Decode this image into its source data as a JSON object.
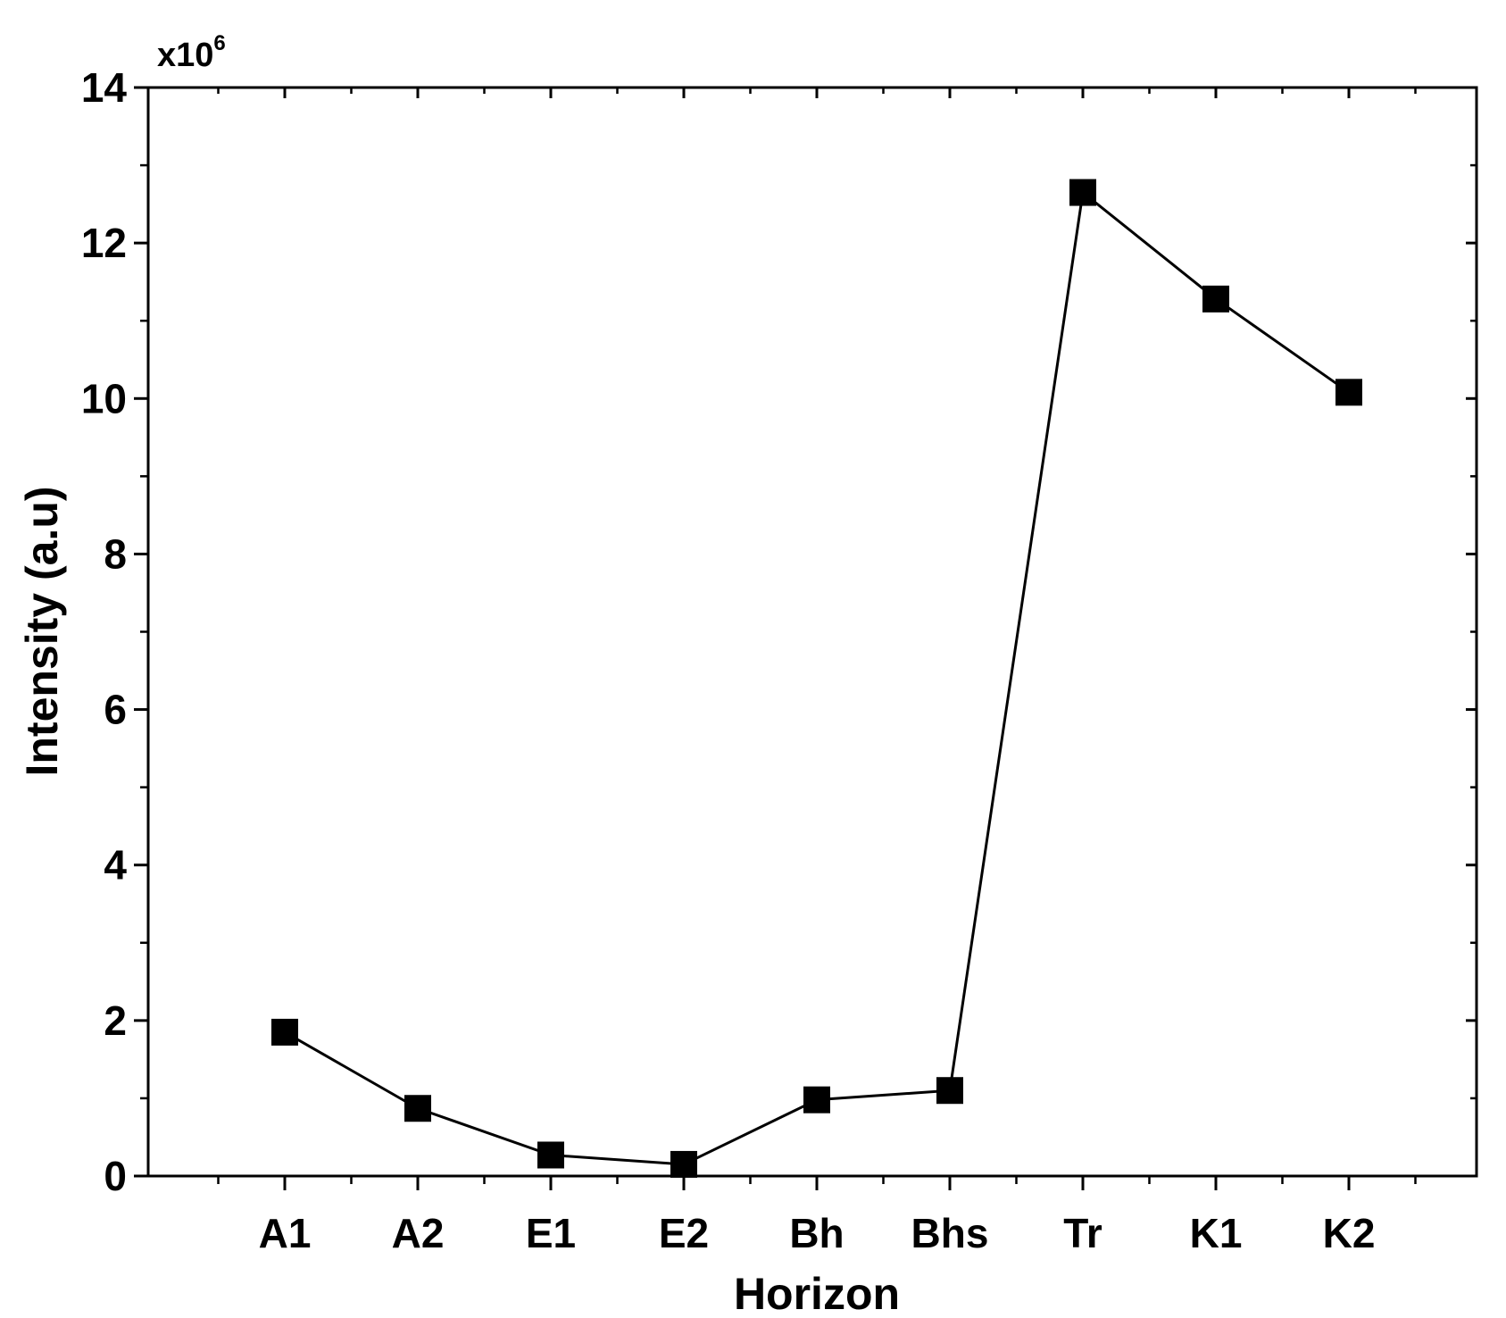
{
  "chart_data": {
    "type": "line",
    "title": "",
    "xlabel": "Horizon",
    "ylabel": "Intensity (a.u)",
    "y_multiplier": {
      "base": "x10",
      "exponent": "6"
    },
    "ylim": [
      0,
      14
    ],
    "yticks": [
      "0",
      "2",
      "4",
      "6",
      "8",
      "10",
      "12",
      "14"
    ],
    "categories": [
      "A1",
      "A2",
      "E1",
      "E2",
      "Bh",
      "Bhs",
      "Tr",
      "K1",
      "K2"
    ],
    "series": [
      {
        "values": [
          1.85,
          0.87,
          0.27,
          0.15,
          0.98,
          1.1,
          12.65,
          11.28,
          10.08
        ],
        "color": "#000000",
        "marker": "square"
      }
    ],
    "grid": false,
    "legend": "none"
  }
}
